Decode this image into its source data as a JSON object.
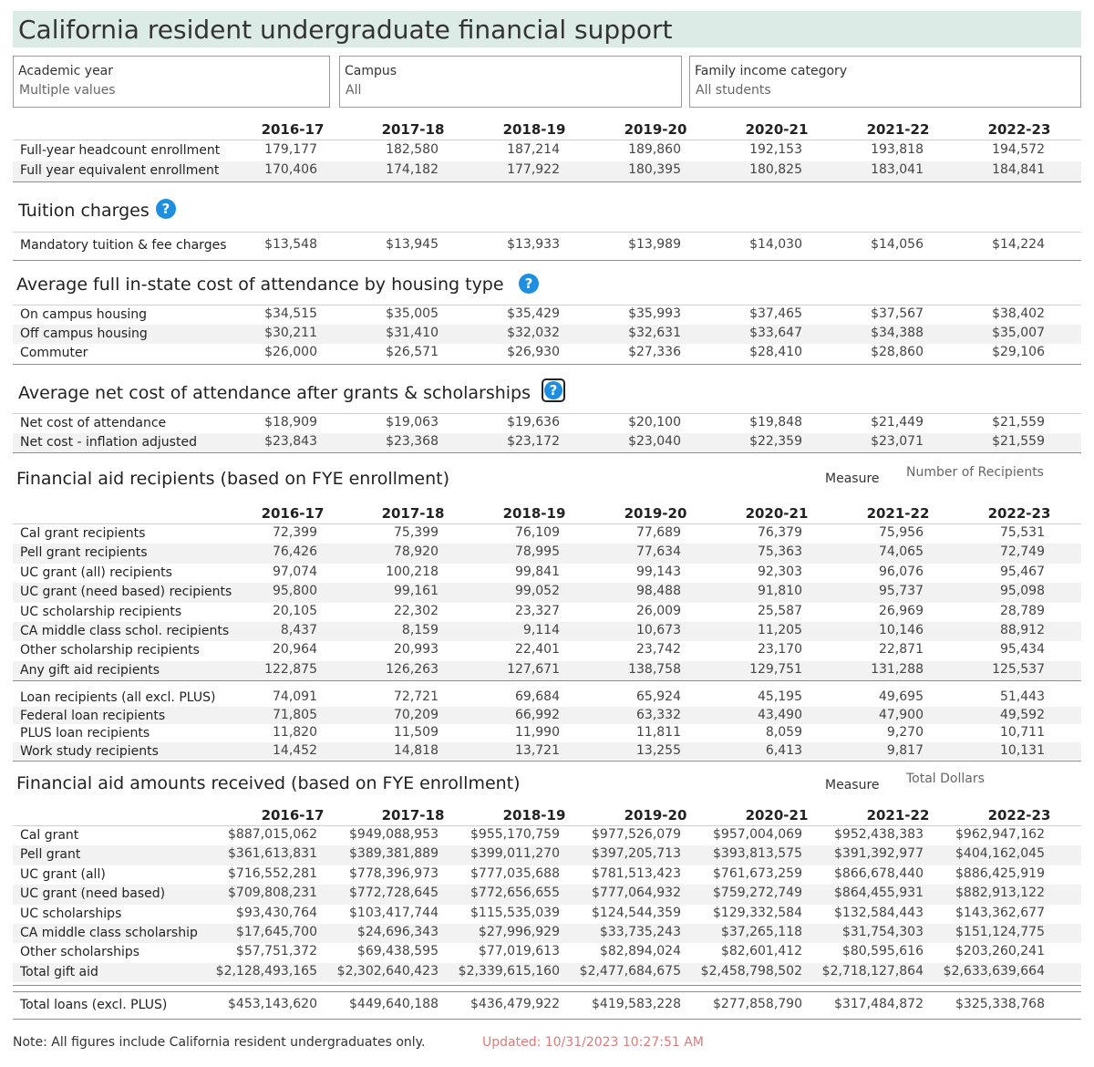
{
  "title": "California resident undergraduate financial support",
  "filters": [
    {
      "label": "Academic year",
      "value": "Multiple values"
    },
    {
      "label": "Campus",
      "value": "All"
    },
    {
      "label": "Family income category",
      "value": "All students"
    }
  ],
  "years": [
    "2016-17",
    "2017-18",
    "2018-19",
    "2019-20",
    "2020-21",
    "2021-22",
    "2022-23"
  ],
  "enrollment": [
    {
      "label": "Full-year headcount enrollment",
      "values": [
        "179,177",
        "182,580",
        "187,214",
        "189,860",
        "192,153",
        "193,818",
        "194,572"
      ]
    },
    {
      "label": "Full year equivalent enrollment",
      "values": [
        "170,406",
        "174,182",
        "177,922",
        "180,395",
        "180,825",
        "183,041",
        "184,841"
      ]
    }
  ],
  "tuition": {
    "title": "Tuition charges",
    "help": "?",
    "rows": [
      {
        "label": "Mandatory tuition & fee charges",
        "values": [
          "$13,548",
          "$13,945",
          "$13,933",
          "$13,989",
          "$14,030",
          "$14,056",
          "$14,224"
        ]
      }
    ]
  },
  "coa": {
    "title": "Average full in-state cost of attendance by housing type",
    "help": "?",
    "rows": [
      {
        "label": "On campus housing",
        "values": [
          "$34,515",
          "$35,005",
          "$35,429",
          "$35,993",
          "$37,465",
          "$37,567",
          "$38,402"
        ]
      },
      {
        "label": "Off campus housing",
        "values": [
          "$30,211",
          "$31,410",
          "$32,032",
          "$32,631",
          "$33,647",
          "$34,388",
          "$35,007"
        ]
      },
      {
        "label": "Commuter",
        "values": [
          "$26,000",
          "$26,571",
          "$26,930",
          "$27,336",
          "$28,410",
          "$28,860",
          "$29,106"
        ]
      }
    ]
  },
  "net": {
    "title": "Average net cost of attendance after grants & scholarships",
    "help": "?",
    "rows": [
      {
        "label": "Net cost of attendance",
        "values": [
          "$18,909",
          "$19,063",
          "$19,636",
          "$20,100",
          "$19,848",
          "$21,449",
          "$21,559"
        ]
      },
      {
        "label": "Net cost - inflation adjusted",
        "values": [
          "$23,843",
          "$23,368",
          "$23,172",
          "$23,040",
          "$22,359",
          "$23,071",
          "$21,559"
        ]
      }
    ]
  },
  "recipients": {
    "title": "Financial aid recipients (based on FYE enrollment)",
    "measure_label": "Measure",
    "measure_value": "Number of Recipients",
    "rows": [
      {
        "label": "Cal grant recipients",
        "values": [
          "72,399",
          "75,399",
          "76,109",
          "77,689",
          "76,379",
          "75,956",
          "75,531"
        ]
      },
      {
        "label": "Pell grant recipients",
        "values": [
          "76,426",
          "78,920",
          "78,995",
          "77,634",
          "75,363",
          "74,065",
          "72,749"
        ]
      },
      {
        "label": "UC grant (all) recipients",
        "values": [
          "97,074",
          "100,218",
          "99,841",
          "99,143",
          "92,303",
          "96,076",
          "95,467"
        ]
      },
      {
        "label": "UC grant (need based) recipients",
        "values": [
          "95,800",
          "99,161",
          "99,052",
          "98,488",
          "91,810",
          "95,737",
          "95,098"
        ]
      },
      {
        "label": "UC scholarship recipients",
        "values": [
          "20,105",
          "22,302",
          "23,327",
          "26,009",
          "25,587",
          "26,969",
          "28,789"
        ]
      },
      {
        "label": "CA middle class schol. recipients",
        "values": [
          "8,437",
          "8,159",
          "9,114",
          "10,673",
          "11,205",
          "10,146",
          "88,912"
        ]
      },
      {
        "label": "Other scholarship recipients",
        "values": [
          "20,964",
          "20,993",
          "22,401",
          "23,742",
          "23,170",
          "22,871",
          "95,434"
        ]
      },
      {
        "label": "Any gift aid recipients",
        "values": [
          "122,875",
          "126,263",
          "127,671",
          "138,758",
          "129,751",
          "131,288",
          "125,537"
        ]
      }
    ],
    "loan_rows": [
      {
        "label": "Loan recipients (all excl. PLUS)",
        "values": [
          "74,091",
          "72,721",
          "69,684",
          "65,924",
          "45,195",
          "49,695",
          "51,443"
        ]
      },
      {
        "label": "Federal loan recipients",
        "values": [
          "71,805",
          "70,209",
          "66,992",
          "63,332",
          "43,490",
          "47,900",
          "49,592"
        ]
      },
      {
        "label": "PLUS loan recipients",
        "values": [
          "11,820",
          "11,509",
          "11,990",
          "11,811",
          "8,059",
          "9,270",
          "10,711"
        ]
      },
      {
        "label": "Work study recipients",
        "values": [
          "14,452",
          "14,818",
          "13,721",
          "13,255",
          "6,413",
          "9,817",
          "10,131"
        ]
      }
    ]
  },
  "amounts": {
    "title": "Financial aid amounts received (based on FYE enrollment)",
    "measure_label": "Measure",
    "measure_value": "Total Dollars",
    "rows": [
      {
        "label": "Cal grant",
        "values": [
          "$887,015,062",
          "$949,088,953",
          "$955,170,759",
          "$977,526,079",
          "$957,004,069",
          "$952,438,383",
          "$962,947,162"
        ]
      },
      {
        "label": "Pell grant",
        "values": [
          "$361,613,831",
          "$389,381,889",
          "$399,011,270",
          "$397,205,713",
          "$393,813,575",
          "$391,392,977",
          "$404,162,045"
        ]
      },
      {
        "label": "UC grant (all)",
        "values": [
          "$716,552,281",
          "$778,396,973",
          "$777,035,688",
          "$781,513,423",
          "$761,673,259",
          "$866,678,440",
          "$886,425,919"
        ]
      },
      {
        "label": "UC grant (need based)",
        "values": [
          "$709,808,231",
          "$772,728,645",
          "$772,656,655",
          "$777,064,932",
          "$759,272,749",
          "$864,455,931",
          "$882,913,122"
        ]
      },
      {
        "label": "UC scholarships",
        "values": [
          "$93,430,764",
          "$103,417,744",
          "$115,535,039",
          "$124,544,359",
          "$129,332,584",
          "$132,584,443",
          "$143,362,677"
        ]
      },
      {
        "label": "CA middle class scholarship",
        "values": [
          "$17,645,700",
          "$24,696,343",
          "$27,996,929",
          "$33,735,243",
          "$37,265,118",
          "$31,754,303",
          "$151,124,775"
        ]
      },
      {
        "label": "Other scholarships",
        "values": [
          "$57,751,372",
          "$69,438,595",
          "$77,019,613",
          "$82,894,024",
          "$82,601,412",
          "$80,595,616",
          "$203,260,241"
        ]
      },
      {
        "label": "Total gift aid",
        "values": [
          "$2,128,493,165",
          "$2,302,640,423",
          "$2,339,615,160",
          "$2,477,684,675",
          "$2,458,798,502",
          "$2,718,127,864",
          "$2,633,639,664"
        ]
      }
    ],
    "loan_rows": [
      {
        "label": "Total loans (excl. PLUS)",
        "values": [
          "$453,143,620",
          "$449,640,188",
          "$436,479,922",
          "$419,583,228",
          "$277,858,790",
          "$317,484,872",
          "$325,338,768"
        ]
      }
    ]
  },
  "footer": {
    "note": "Note: All figures include California resident undergraduates only.",
    "updated": "Updated: 10/31/2023 10:27:51 AM"
  }
}
